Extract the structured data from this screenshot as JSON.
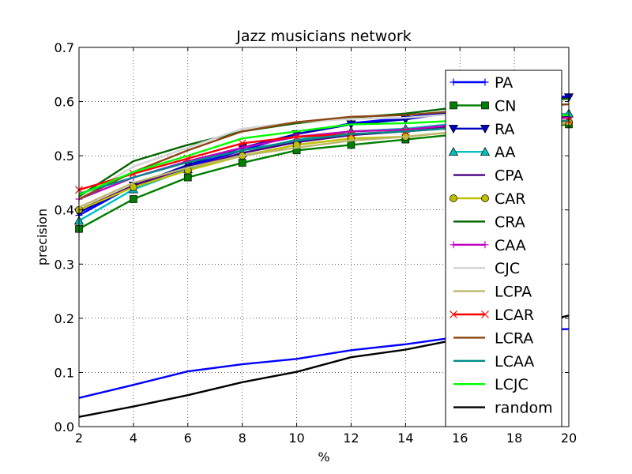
{
  "chart_data": {
    "type": "line",
    "title": "Jazz musicians network",
    "xlabel": "%",
    "ylabel": "precision",
    "xlim": [
      2,
      20
    ],
    "ylim": [
      0.0,
      0.7
    ],
    "x": [
      2,
      4,
      6,
      8,
      10,
      12,
      14,
      16,
      18,
      20
    ],
    "xticks": [
      "2",
      "4",
      "6",
      "8",
      "10",
      "12",
      "14",
      "16",
      "18",
      "20"
    ],
    "yticks": [
      "0.0",
      "0.1",
      "0.2",
      "0.3",
      "0.4",
      "0.5",
      "0.6",
      "0.7"
    ],
    "grid": true,
    "legend_position": "right",
    "series": [
      {
        "name": "PA",
        "color": "#0000ff",
        "marker": "plus",
        "values": [
          0.39,
          0.445,
          0.48,
          0.51,
          0.54,
          0.56,
          0.57,
          0.585,
          0.6,
          0.61
        ]
      },
      {
        "name": "CN",
        "color": "#007f00",
        "marker": "square",
        "values": [
          0.365,
          0.42,
          0.46,
          0.487,
          0.51,
          0.52,
          0.53,
          0.54,
          0.55,
          0.558
        ]
      },
      {
        "name": "RA",
        "color": "#0000bf",
        "marker": "triangle-down",
        "values": [
          0.395,
          0.445,
          0.483,
          0.515,
          0.54,
          0.558,
          0.567,
          0.582,
          0.598,
          0.608
        ]
      },
      {
        "name": "AA",
        "color": "#00bfbf",
        "marker": "triangle-up",
        "values": [
          0.38,
          0.438,
          0.475,
          0.505,
          0.53,
          0.545,
          0.55,
          0.56,
          0.57,
          0.578
        ]
      },
      {
        "name": "CPA",
        "color": "#4b0082",
        "marker": "none",
        "values": [
          0.4,
          0.445,
          0.478,
          0.505,
          0.525,
          0.538,
          0.545,
          0.555,
          0.565,
          0.572
        ]
      },
      {
        "name": "CAR",
        "color": "#bfbf00",
        "marker": "circle",
        "values": [
          0.4,
          0.442,
          0.473,
          0.5,
          0.52,
          0.532,
          0.535,
          0.545,
          0.555,
          0.562
        ]
      },
      {
        "name": "CRA",
        "color": "#006400",
        "marker": "none",
        "values": [
          0.425,
          0.49,
          0.52,
          0.545,
          0.56,
          0.57,
          0.578,
          0.59,
          0.6,
          0.605
        ]
      },
      {
        "name": "CAA",
        "color": "#bf00bf",
        "marker": "plus",
        "values": [
          0.42,
          0.46,
          0.49,
          0.515,
          0.535,
          0.545,
          0.548,
          0.558,
          0.565,
          0.57
        ]
      },
      {
        "name": "CJC",
        "color": "#d3d3d3",
        "marker": "none",
        "values": [
          0.42,
          0.48,
          0.515,
          0.55,
          0.562,
          0.568,
          0.57,
          0.578,
          0.59,
          0.595
        ]
      },
      {
        "name": "LCPA",
        "color": "#bdb76b",
        "marker": "none",
        "values": [
          0.405,
          0.45,
          0.478,
          0.5,
          0.515,
          0.528,
          0.535,
          0.545,
          0.555,
          0.56
        ]
      },
      {
        "name": "LCAR",
        "color": "#ff0000",
        "marker": "x",
        "values": [
          0.437,
          0.467,
          0.495,
          0.523,
          0.535,
          0.54,
          0.545,
          0.552,
          0.56,
          0.565
        ]
      },
      {
        "name": "LCRA",
        "color": "#8b4513",
        "marker": "none",
        "values": [
          0.42,
          0.47,
          0.51,
          0.545,
          0.562,
          0.572,
          0.575,
          0.583,
          0.59,
          0.595
        ]
      },
      {
        "name": "LCAA",
        "color": "#008b8b",
        "marker": "none",
        "values": [
          0.43,
          0.46,
          0.488,
          0.51,
          0.528,
          0.54,
          0.545,
          0.552,
          0.56,
          0.565
        ]
      },
      {
        "name": "LCJC",
        "color": "#00ff00",
        "marker": "none",
        "values": [
          0.428,
          0.47,
          0.5,
          0.532,
          0.545,
          0.558,
          0.56,
          0.565,
          0.572,
          0.575
        ]
      },
      {
        "name": "PA",
        "legend": false,
        "color": "#0000ff",
        "marker": "none",
        "values": [
          0.053,
          0.077,
          0.102,
          0.115,
          0.125,
          0.141,
          0.152,
          0.166,
          0.178,
          0.18
        ]
      },
      {
        "name": "random",
        "color": "#000000",
        "marker": "none",
        "values": [
          0.018,
          0.037,
          0.058,
          0.082,
          0.101,
          0.128,
          0.142,
          0.162,
          0.182,
          0.205
        ]
      }
    ]
  }
}
